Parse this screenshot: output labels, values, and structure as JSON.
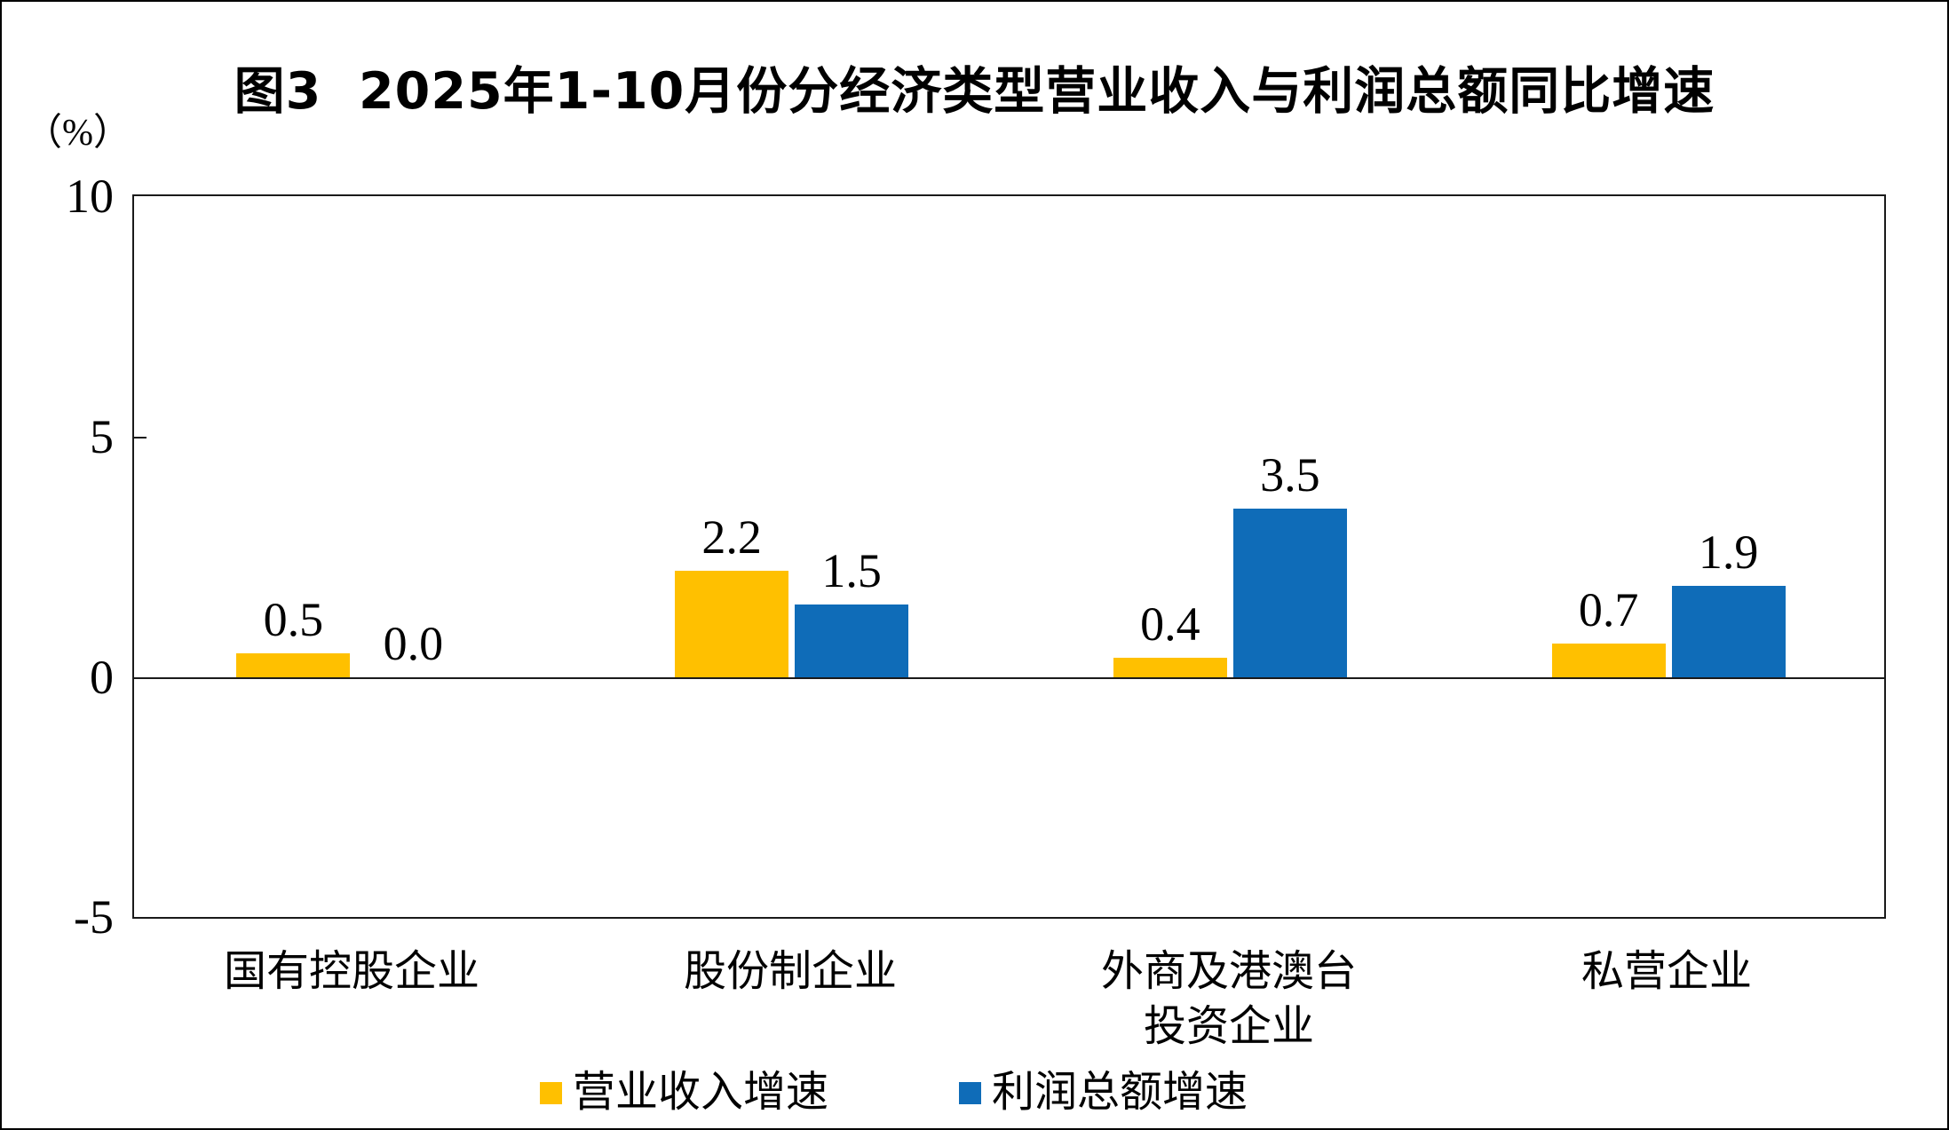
{
  "figure": {
    "title": "图3  2025年1-10月份分经济类型营业收入与利润总额同比增速",
    "unit_label": "（%）"
  },
  "axis": {
    "ytick_labels": [
      "10",
      "5",
      "0",
      "-5"
    ]
  },
  "legend": {
    "items": [
      {
        "label": "营业收入增速",
        "color": "#FFC000"
      },
      {
        "label": "利润总额增速",
        "color": "#0F6CB8"
      }
    ]
  },
  "chart_data": {
    "type": "bar",
    "title": "图3 2025年1-10月份分经济类型营业收入与利润总额同比增速",
    "unit": "%",
    "categories": [
      "国有控股企业",
      "股份制企业",
      "外商及港澳台投资企业",
      "私营企业"
    ],
    "categories_display": [
      [
        "国有控股企业"
      ],
      [
        "股份制企业"
      ],
      [
        "外商及港澳台",
        "投资企业"
      ],
      [
        "私营企业"
      ]
    ],
    "series": [
      {
        "name": "营业收入增速",
        "color": "#FFC000",
        "values": [
          0.5,
          2.2,
          0.4,
          0.7
        ],
        "labels": [
          "0.5",
          "2.2",
          "0.4",
          "0.7"
        ]
      },
      {
        "name": "利润总额增速",
        "color": "#0F6CB8",
        "values": [
          0.0,
          1.5,
          3.5,
          1.9
        ],
        "labels": [
          "0.0",
          "1.5",
          "3.5",
          "1.9"
        ]
      }
    ],
    "ylim": [
      -5,
      10
    ],
    "yticks": [
      10,
      5,
      0,
      -5
    ],
    "grid": false,
    "legend_position": "bottom"
  }
}
